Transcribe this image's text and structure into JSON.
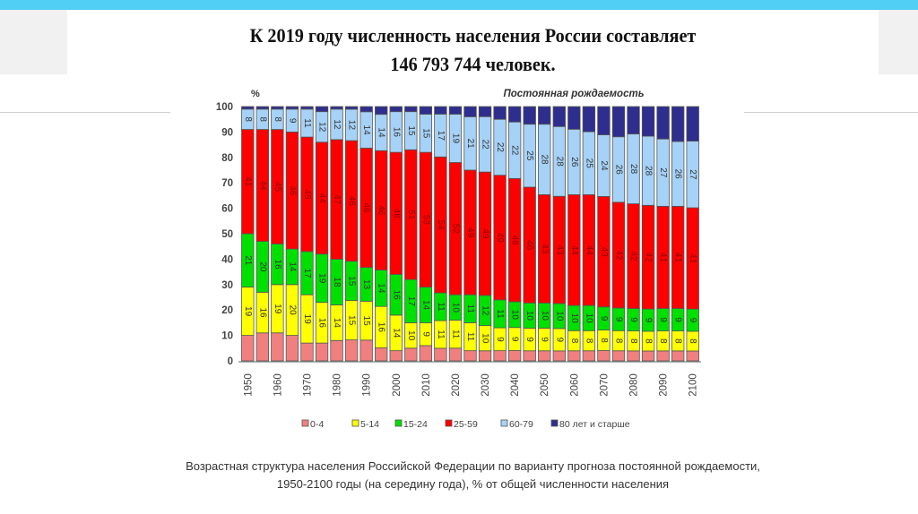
{
  "slide": {
    "title_line1": "К 2019 году численность населения России составляет",
    "title_line2": "146 793 744 человек.",
    "caption": "Возрастная структура населения Российской Федерации по варианту прогноза постоянной рождаемости, 1950-2100 годы (на середину года), % от общей численности населения"
  },
  "chart_data": {
    "type": "bar",
    "stacked": true,
    "title": "Постоянная рождаемость",
    "ylabel": "%",
    "ylim": [
      0,
      100
    ],
    "yticks": [
      0,
      10,
      20,
      30,
      40,
      50,
      60,
      70,
      80,
      90,
      100
    ],
    "x": [
      1950,
      1955,
      1960,
      1965,
      1970,
      1975,
      1980,
      1985,
      1990,
      1995,
      2000,
      2005,
      2010,
      2015,
      2020,
      2025,
      2030,
      2035,
      2040,
      2045,
      2050,
      2055,
      2060,
      2065,
      2070,
      2075,
      2080,
      2085,
      2090,
      2095,
      2100
    ],
    "xtick_labels": [
      "1950",
      "1960",
      "1970",
      "1980",
      "1990",
      "2000",
      "2010",
      "2020",
      "2030",
      "2040",
      "2050",
      "2060",
      "2070",
      "2080",
      "2090",
      "2100"
    ],
    "legend_position": "bottom",
    "series": [
      {
        "name": "0-4",
        "color": "#f08080",
        "labeled": false,
        "values": [
          10,
          11,
          11,
          10,
          7,
          7,
          8,
          8,
          8,
          5,
          4,
          5,
          6,
          5,
          5,
          4,
          4,
          4,
          4,
          4,
          4,
          4,
          4,
          4,
          4,
          4,
          4,
          4,
          4,
          4,
          4
        ]
      },
      {
        "name": "5-14",
        "color": "#ffff00",
        "labeled": true,
        "values": [
          19,
          16,
          19,
          20,
          19,
          16,
          14,
          15,
          15,
          16,
          14,
          10,
          9,
          11,
          11,
          11,
          10,
          9,
          9,
          9,
          9,
          9,
          8,
          8,
          8,
          8,
          8,
          8,
          8,
          8,
          8
        ]
      },
      {
        "name": "15-24",
        "color": "#00e000",
        "labeled": true,
        "values": [
          21,
          20,
          16,
          14,
          17,
          19,
          18,
          15,
          13,
          14,
          16,
          17,
          14,
          11,
          10,
          11,
          12,
          11,
          10,
          10,
          10,
          10,
          10,
          10,
          9,
          9,
          9,
          9,
          9,
          9,
          9
        ]
      },
      {
        "name": "25-59",
        "color": "#ff0000",
        "labeled": true,
        "values": [
          41,
          44,
          45,
          46,
          45,
          44,
          47,
          46,
          46,
          46,
          48,
          51,
          53,
          54,
          52,
          49,
          49,
          49,
          48,
          46,
          43,
          43,
          44,
          44,
          43,
          42,
          42,
          42,
          41,
          41,
          41
        ]
      },
      {
        "name": "60-79",
        "color": "#a6d2f7",
        "labeled": true,
        "values": [
          8,
          8,
          8,
          9,
          11,
          12,
          12,
          12,
          14,
          14,
          16,
          15,
          15,
          17,
          19,
          21,
          22,
          22,
          22,
          25,
          28,
          28,
          26,
          25,
          24,
          26,
          28,
          28,
          27,
          26,
          27
        ]
      },
      {
        "name": "80 лет и старше",
        "color": "#2e2e8f",
        "labeled": false,
        "values": [
          1,
          1,
          1,
          1,
          1,
          2,
          1,
          1,
          2,
          3,
          2,
          2,
          3,
          3,
          3,
          4,
          4,
          5,
          6,
          7,
          7,
          8,
          9,
          10,
          11,
          12,
          11,
          12,
          13,
          14,
          14
        ]
      }
    ]
  }
}
